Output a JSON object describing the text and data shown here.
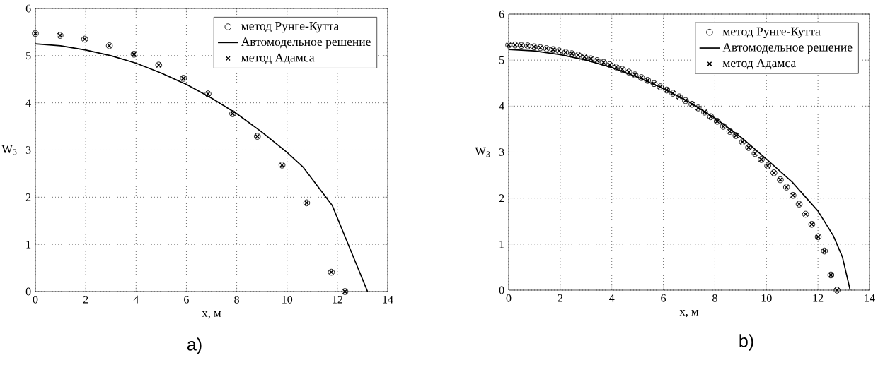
{
  "chart_data": [
    {
      "type": "scatter",
      "xlabel": "x, м",
      "ylabel": "W$_{3}$",
      "xlim": [
        0,
        14
      ],
      "ylim": [
        0,
        6
      ],
      "xticks": [
        0,
        2,
        4,
        6,
        8,
        10,
        12,
        14
      ],
      "yticks": [
        0,
        1,
        2,
        3,
        4,
        5,
        6
      ],
      "grid": true,
      "legend": "top right",
      "annotations": [
        "a)"
      ],
      "series": [
        {
          "name": "метод Рунге-Кутта",
          "marker": "circle",
          "color": "#000000",
          "x": [
            0,
            0.98,
            1.96,
            2.94,
            3.92,
            4.9,
            5.88,
            6.86,
            7.84,
            8.82,
            9.8,
            10.78,
            11.76,
            12.3
          ],
          "values": [
            5.47,
            5.43,
            5.35,
            5.21,
            5.03,
            4.8,
            4.52,
            4.19,
            3.77,
            3.29,
            2.68,
            1.88,
            0.41,
            0
          ]
        },
        {
          "name": "Автомодельное решение",
          "type": "line",
          "marker": "none",
          "line_style": "solid",
          "color": "#000000",
          "x": [
            0,
            1,
            2,
            3,
            4,
            5,
            6,
            7,
            8,
            9,
            10,
            10.65,
            11.8,
            13.2
          ],
          "values": [
            5.25,
            5.21,
            5.12,
            5.0,
            4.84,
            4.63,
            4.39,
            4.1,
            3.77,
            3.38,
            2.95,
            2.63,
            1.82,
            0
          ]
        },
        {
          "name": "метод Адамса",
          "marker": "cross",
          "color": "#000000",
          "x": [
            0,
            0.98,
            1.96,
            2.94,
            3.92,
            4.9,
            5.88,
            6.86,
            7.84,
            8.82,
            9.8,
            10.78,
            11.76,
            12.3
          ],
          "values": [
            5.47,
            5.43,
            5.35,
            5.21,
            5.03,
            4.8,
            4.52,
            4.19,
            3.77,
            3.29,
            2.68,
            1.88,
            0.41,
            0
          ]
        }
      ]
    },
    {
      "type": "scatter",
      "xlabel": "x, м",
      "ylabel": "W$_{3}$",
      "xlim": [
        0,
        14
      ],
      "ylim": [
        0,
        6
      ],
      "xticks": [
        0,
        2,
        4,
        6,
        8,
        10,
        12,
        14
      ],
      "yticks": [
        0,
        1,
        2,
        3,
        4,
        5,
        6
      ],
      "grid": true,
      "legend": "top right",
      "annotations": [
        "b)"
      ],
      "series": [
        {
          "name": "метод Рунге-Кутта",
          "marker": "circle",
          "color": "#000000",
          "x": [
            0,
            0.25,
            0.49,
            0.74,
            0.98,
            1.23,
            1.47,
            1.72,
            1.96,
            2.21,
            2.45,
            2.7,
            2.94,
            3.19,
            3.43,
            3.68,
            3.92,
            4.17,
            4.41,
            4.66,
            4.9,
            5.15,
            5.39,
            5.64,
            5.88,
            6.13,
            6.37,
            6.62,
            6.86,
            7.11,
            7.35,
            7.6,
            7.84,
            8.09,
            8.33,
            8.58,
            8.82,
            9.07,
            9.31,
            9.56,
            9.8,
            10.05,
            10.29,
            10.54,
            10.78,
            11.03,
            11.27,
            11.52,
            11.76,
            12.01,
            12.25,
            12.5,
            12.74
          ],
          "values": [
            5.33,
            5.33,
            5.32,
            5.31,
            5.29,
            5.27,
            5.25,
            5.23,
            5.2,
            5.17,
            5.14,
            5.11,
            5.07,
            5.03,
            4.99,
            4.95,
            4.9,
            4.85,
            4.8,
            4.74,
            4.68,
            4.62,
            4.56,
            4.49,
            4.42,
            4.35,
            4.28,
            4.2,
            4.12,
            4.04,
            3.96,
            3.87,
            3.77,
            3.67,
            3.56,
            3.45,
            3.36,
            3.22,
            3.1,
            2.97,
            2.84,
            2.7,
            2.55,
            2.4,
            2.24,
            2.06,
            1.87,
            1.65,
            1.43,
            1.16,
            0.85,
            0.33,
            0
          ]
        },
        {
          "name": "Автомодельное решение",
          "type": "line",
          "marker": "none",
          "line_style": "solid",
          "color": "#000000",
          "x": [
            0,
            1,
            2,
            3,
            4,
            5,
            6,
            7,
            8,
            9,
            10,
            11,
            12,
            12.6,
            12.95,
            13.25
          ],
          "values": [
            5.23,
            5.2,
            5.12,
            5.0,
            4.84,
            4.63,
            4.38,
            4.09,
            3.74,
            3.33,
            2.85,
            2.35,
            1.72,
            1.18,
            0.72,
            0
          ]
        },
        {
          "name": "метод Адамса",
          "marker": "cross",
          "color": "#000000",
          "x": [
            0,
            0.25,
            0.49,
            0.74,
            0.98,
            1.23,
            1.47,
            1.72,
            1.96,
            2.21,
            2.45,
            2.7,
            2.94,
            3.19,
            3.43,
            3.68,
            3.92,
            4.17,
            4.41,
            4.66,
            4.9,
            5.15,
            5.39,
            5.64,
            5.88,
            6.13,
            6.37,
            6.62,
            6.86,
            7.11,
            7.35,
            7.6,
            7.84,
            8.09,
            8.33,
            8.58,
            8.82,
            9.07,
            9.31,
            9.56,
            9.8,
            10.05,
            10.29,
            10.54,
            10.78,
            11.03,
            11.27,
            11.52,
            11.76,
            12.01,
            12.25,
            12.5,
            12.74
          ],
          "values": [
            5.33,
            5.33,
            5.32,
            5.31,
            5.29,
            5.27,
            5.25,
            5.23,
            5.2,
            5.17,
            5.14,
            5.11,
            5.07,
            5.03,
            4.99,
            4.95,
            4.9,
            4.85,
            4.8,
            4.74,
            4.68,
            4.62,
            4.56,
            4.49,
            4.42,
            4.35,
            4.28,
            4.2,
            4.12,
            4.04,
            3.96,
            3.87,
            3.77,
            3.67,
            3.56,
            3.45,
            3.36,
            3.22,
            3.1,
            2.97,
            2.84,
            2.7,
            2.55,
            2.4,
            2.24,
            2.06,
            1.87,
            1.65,
            1.43,
            1.16,
            0.85,
            0.33,
            0
          ]
        }
      ]
    }
  ]
}
